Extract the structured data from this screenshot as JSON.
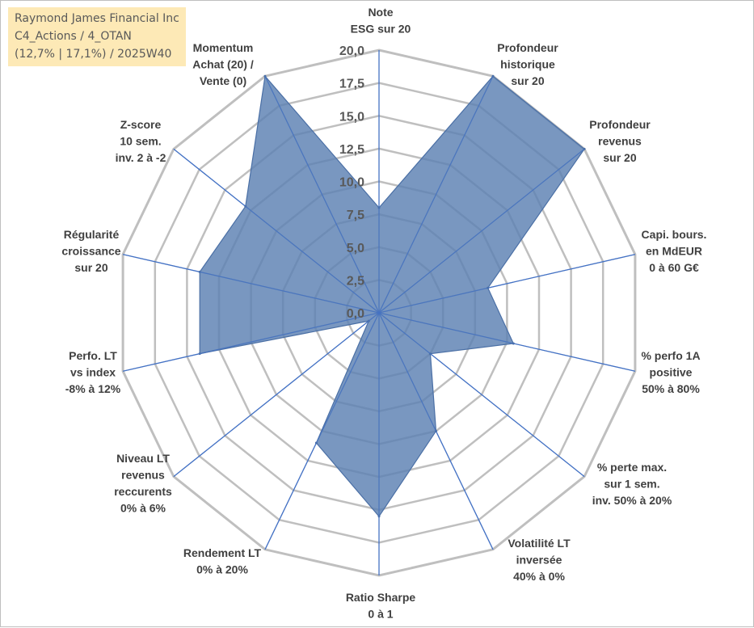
{
  "info": {
    "company": "Raymond James Financial Inc",
    "portfolio": "C4_Actions / 4_OTAN",
    "stats": "(12,7% | 17,1%) / 2025W40"
  },
  "chart_data": {
    "type": "radar",
    "title": "Raymond James Financial Inc",
    "range": [
      0,
      20
    ],
    "ticks": [
      "0,0",
      "2,5",
      "5,0",
      "7,5",
      "10,0",
      "12,5",
      "15,0",
      "17,5",
      "20,0"
    ],
    "tick_values": [
      0,
      2.5,
      5,
      7.5,
      10,
      12.5,
      15,
      17.5,
      20
    ],
    "categories": [
      [
        "Note",
        "ESG sur 20"
      ],
      [
        "Profondeur",
        "historique",
        "sur 20"
      ],
      [
        "Profondeur",
        "revenus",
        "sur 20"
      ],
      [
        "Capi. bours.",
        "en MdEUR",
        "0 à 60 G€"
      ],
      [
        "% perfo 1A",
        "positive",
        "50% à 80%"
      ],
      [
        "% perte max.",
        "sur 1 sem.",
        "inv. 50% à 20%"
      ],
      [
        "Volatilité LT",
        "inversée",
        "40% à 0%"
      ],
      [
        "Ratio Sharpe",
        "0 à 1"
      ],
      [
        "Rendement LT",
        "0% à 20%"
      ],
      [
        "Niveau LT",
        "revenus",
        "reccurents",
        "0% à 6%"
      ],
      [
        "Perfo. LT",
        "vs index",
        "-8% à 12%"
      ],
      [
        "Régularité",
        "croissance",
        "sur 20"
      ],
      [
        "Z-score",
        "10 sem.",
        "inv. 2 à -2"
      ],
      [
        "Momentum",
        "Achat (20) /",
        "Vente (0)"
      ]
    ],
    "series": [
      {
        "name": "Raymond James Financial Inc",
        "color": "#5b80b2",
        "values": [
          8.0,
          20.0,
          20.0,
          8.5,
          10.5,
          5.0,
          10.0,
          15.5,
          11.0,
          1.0,
          14.0,
          14.0,
          13.0,
          20.0
        ]
      }
    ],
    "colors": {
      "grid": "#bfbfbf",
      "spoke": "#4472c4",
      "fill": "#5b80b2",
      "stroke": "#4a6fa5"
    }
  }
}
